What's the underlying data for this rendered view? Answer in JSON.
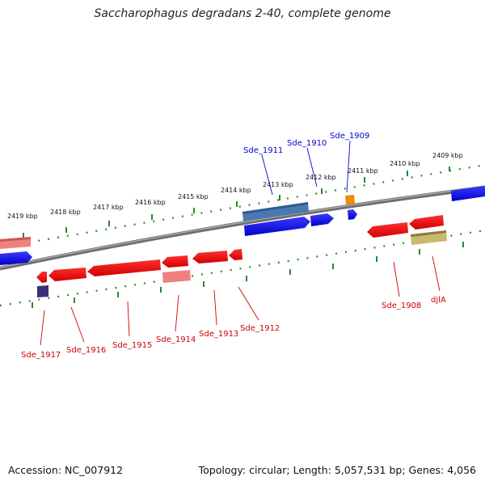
{
  "title": "Saccharophagus degradans 2-40, complete genome",
  "footer": {
    "accession": "Accession: NC_007912",
    "summary": "Topology: circular; Length: 5,057,531 bp; Genes: 4,056"
  },
  "colors": {
    "backbone": "#808080",
    "ticks": "#228822",
    "forward_gene": "#0000ee",
    "reverse_gene": "#ee0000",
    "forward_label": "#0000cc",
    "reverse_label": "#cc0000",
    "kbp_label": "#111111"
  },
  "kbp_labels": [
    "2409 kbp",
    "2410 kbp",
    "2411 kbp",
    "2412 kbp",
    "2413 kbp",
    "2414 kbp",
    "2415 kbp",
    "2416 kbp",
    "2417 kbp",
    "2418 kbp",
    "2419 kbp"
  ],
  "forward_gene_labels": [
    "Sde_1909",
    "Sde_1910",
    "Sde_1911"
  ],
  "reverse_gene_labels": [
    "djlA",
    "Sde_1908",
    "Sde_1912",
    "Sde_1913",
    "Sde_1914",
    "Sde_1915",
    "Sde_1916",
    "Sde_1917"
  ]
}
